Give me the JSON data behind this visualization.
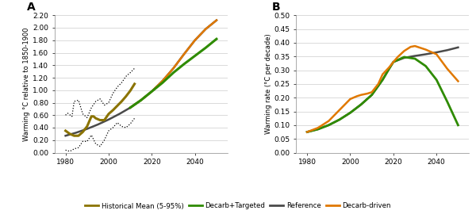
{
  "panel_A": {
    "title": "A",
    "ylabel": "Warming °C relative to 1850-1900",
    "xlim": [
      1975,
      2055
    ],
    "ylim": [
      0.0,
      2.2
    ],
    "yticks": [
      0.0,
      0.2,
      0.4,
      0.6,
      0.8,
      1.0,
      1.2,
      1.4,
      1.6,
      1.8,
      2.0,
      2.2
    ],
    "xticks": [
      1980,
      2000,
      2020,
      2040
    ],
    "hist_mean_x": [
      1980,
      1982,
      1984,
      1986,
      1988,
      1990,
      1992,
      1993,
      1994,
      1996,
      1998,
      2000,
      2002,
      2004,
      2006,
      2008,
      2010,
      2012
    ],
    "hist_mean_y": [
      0.35,
      0.3,
      0.27,
      0.27,
      0.33,
      0.42,
      0.58,
      0.58,
      0.55,
      0.52,
      0.52,
      0.62,
      0.68,
      0.75,
      0.82,
      0.9,
      0.99,
      1.1
    ],
    "hist_upper_x": [
      1980,
      1981,
      1983,
      1984,
      1986,
      1988,
      1990,
      1992,
      1994,
      1996,
      1998,
      2000,
      2002,
      2004,
      2006,
      2008,
      2010,
      2012
    ],
    "hist_upper_y": [
      0.6,
      0.63,
      0.58,
      0.82,
      0.84,
      0.62,
      0.56,
      0.72,
      0.82,
      0.86,
      0.76,
      0.8,
      0.95,
      1.05,
      1.12,
      1.22,
      1.28,
      1.35
    ],
    "hist_lower_x": [
      1980,
      1982,
      1984,
      1986,
      1988,
      1990,
      1992,
      1994,
      1996,
      1998,
      2000,
      2002,
      2004,
      2006,
      2008,
      2010,
      2012
    ],
    "hist_lower_y": [
      0.04,
      0.02,
      0.06,
      0.08,
      0.18,
      0.18,
      0.28,
      0.14,
      0.1,
      0.2,
      0.35,
      0.4,
      0.48,
      0.42,
      0.4,
      0.46,
      0.55
    ],
    "ref_x": [
      1980,
      1985,
      1990,
      1995,
      2000,
      2005,
      2010,
      2015,
      2020,
      2025,
      2030,
      2035,
      2040,
      2045,
      2050
    ],
    "ref_y": [
      0.27,
      0.32,
      0.38,
      0.45,
      0.53,
      0.62,
      0.72,
      0.84,
      0.98,
      1.15,
      1.35,
      1.58,
      1.8,
      1.98,
      2.12
    ],
    "decarb_targeted_x": [
      2010,
      2015,
      2020,
      2025,
      2030,
      2035,
      2040,
      2045,
      2050
    ],
    "decarb_targeted_y": [
      0.72,
      0.84,
      0.98,
      1.12,
      1.28,
      1.42,
      1.55,
      1.68,
      1.82
    ],
    "decarb_driven_x": [
      2010,
      2015,
      2020,
      2025,
      2030,
      2035,
      2040,
      2045,
      2050
    ],
    "decarb_driven_y": [
      0.72,
      0.84,
      0.98,
      1.15,
      1.35,
      1.58,
      1.8,
      1.98,
      2.12
    ],
    "hist_color": "#8B7300",
    "ref_color": "#4A4A4A",
    "decarb_targeted_color": "#2E8B00",
    "decarb_driven_color": "#E07800"
  },
  "panel_B": {
    "title": "B",
    "ylabel": "Warming rate (°C per decade)",
    "xlim": [
      1975,
      2055
    ],
    "ylim": [
      0.0,
      0.5
    ],
    "yticks": [
      0.0,
      0.05,
      0.1,
      0.15,
      0.2,
      0.25,
      0.3,
      0.35,
      0.4,
      0.45,
      0.5
    ],
    "xticks": [
      1980,
      2000,
      2020,
      2040
    ],
    "ref_x": [
      1980,
      1985,
      1990,
      1995,
      2000,
      2005,
      2010,
      2015,
      2018,
      2020,
      2025,
      2030,
      2035,
      2040,
      2045,
      2050
    ],
    "ref_y": [
      0.075,
      0.085,
      0.1,
      0.12,
      0.145,
      0.175,
      0.21,
      0.265,
      0.305,
      0.33,
      0.345,
      0.352,
      0.358,
      0.365,
      0.373,
      0.383
    ],
    "decarb_targeted_x": [
      1980,
      1985,
      1990,
      1995,
      2000,
      2005,
      2010,
      2015,
      2018,
      2020,
      2025,
      2030,
      2035,
      2040,
      2045,
      2050
    ],
    "decarb_targeted_y": [
      0.075,
      0.085,
      0.1,
      0.12,
      0.145,
      0.175,
      0.21,
      0.265,
      0.305,
      0.33,
      0.348,
      0.342,
      0.315,
      0.265,
      0.185,
      0.1
    ],
    "decarb_driven_x": [
      1980,
      1985,
      1990,
      1995,
      2000,
      2003,
      2005,
      2008,
      2010,
      2013,
      2015,
      2018,
      2020,
      2022,
      2025,
      2028,
      2030,
      2035,
      2040,
      2045,
      2050
    ],
    "decarb_driven_y": [
      0.075,
      0.09,
      0.115,
      0.155,
      0.195,
      0.205,
      0.21,
      0.215,
      0.22,
      0.25,
      0.285,
      0.31,
      0.33,
      0.348,
      0.37,
      0.385,
      0.388,
      0.375,
      0.358,
      0.305,
      0.26
    ],
    "ref_color": "#4A4A4A",
    "decarb_targeted_color": "#2E8B00",
    "decarb_driven_color": "#E07800"
  },
  "legend": {
    "hist_label": "Historical Mean (5-95%)",
    "decarb_targeted_label": "Decarb+Targeted",
    "ref_label": "Reference",
    "decarb_driven_label": "Decarb-driven",
    "hist_color": "#8B7300",
    "ref_color": "#4A4A4A",
    "decarb_targeted_color": "#2E8B00",
    "decarb_driven_color": "#E07800"
  }
}
